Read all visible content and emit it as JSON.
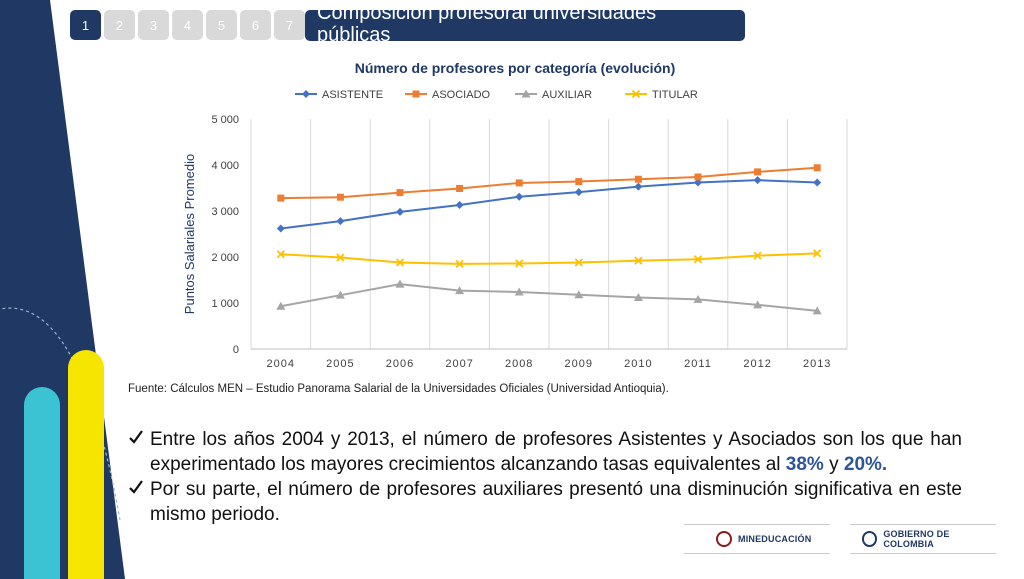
{
  "nav": {
    "tabs": [
      "1",
      "2",
      "3",
      "4",
      "5",
      "6",
      "7"
    ],
    "active_index": 0
  },
  "header": {
    "title": "Composición profesoral universidades públicas"
  },
  "chart_data": {
    "type": "line",
    "title": "Número de profesores por categoría (evolución)",
    "ylabel": "Puntos Salariales Promedio",
    "xlabel": "",
    "categories": [
      "2004",
      "2005",
      "2006",
      "2007",
      "2008",
      "2009",
      "2010",
      "2011",
      "2012",
      "2013"
    ],
    "ylim": [
      0,
      5000
    ],
    "yticks": [
      0,
      1000,
      2000,
      3000,
      4000,
      5000
    ],
    "ytick_labels": [
      "0",
      "1 000",
      "2 000",
      "3 000",
      "4 000",
      "5 000"
    ],
    "grid": "vertical",
    "legend_position": "top",
    "series": [
      {
        "name": "ASISTENTE",
        "color": "#4472c4",
        "marker": "diamond",
        "values": [
          2620,
          2780,
          2980,
          3130,
          3310,
          3410,
          3530,
          3620,
          3670,
          3620
        ]
      },
      {
        "name": "ASOCIADO",
        "color": "#ed7d31",
        "marker": "square",
        "values": [
          3280,
          3300,
          3400,
          3490,
          3610,
          3640,
          3690,
          3740,
          3850,
          3940
        ]
      },
      {
        "name": "AUXILIAR",
        "color": "#a5a5a5",
        "marker": "triangle",
        "values": [
          930,
          1170,
          1410,
          1270,
          1240,
          1180,
          1120,
          1080,
          960,
          830
        ]
      },
      {
        "name": "TITULAR",
        "color": "#ffc000",
        "marker": "x",
        "values": [
          2060,
          1990,
          1880,
          1850,
          1860,
          1880,
          1920,
          1950,
          2030,
          2080
        ]
      }
    ]
  },
  "source": "Fuente: Cálculos MEN – Estudio Panorama Salarial de la Universidades Oficiales (Universidad Antioquia).",
  "bullets": {
    "check_icon": "check-icon",
    "item1_text": "Entre los años 2004 y 2013, el número de profesores Asistentes y Asociados son los que han experimentado los mayores crecimientos alcanzando tasas equivalentes al ",
    "item1_pct1": "38%",
    "item1_and": " y ",
    "item1_pct2": "20%.",
    "item2_text": "Por su parte, el número de profesores auxiliares presentó una disminución significativa en este mismo periodo."
  },
  "footer": {
    "logo1": "MINEDUCACIÓN",
    "logo2": "GOBIERNO DE COLOMBIA"
  },
  "colors": {
    "navy": "#1f3864",
    "cyan": "#3cc3d3",
    "yellow": "#f5e500",
    "highlight": "#2e5597"
  }
}
